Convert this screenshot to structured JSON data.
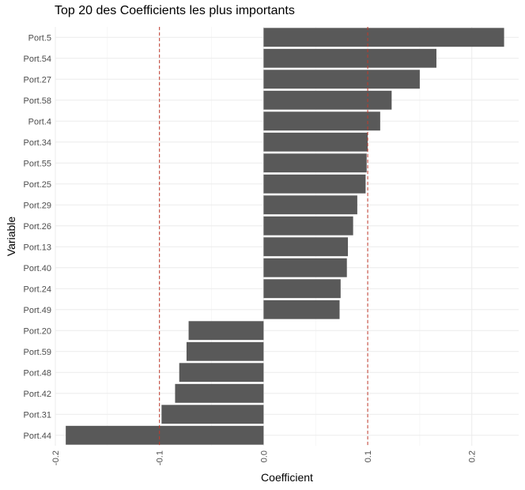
{
  "chart_data": {
    "type": "bar",
    "orientation": "horizontal",
    "title": "Top 20 des Coefficients les plus importants",
    "xlabel": "Coefficient",
    "ylabel": "Variable",
    "categories": [
      "Port.5",
      "Port.54",
      "Port.27",
      "Port.58",
      "Port.4",
      "Port.34",
      "Port.55",
      "Port.25",
      "Port.29",
      "Port.26",
      "Port.13",
      "Port.40",
      "Port.24",
      "Port.49",
      "Port.20",
      "Port.59",
      "Port.48",
      "Port.42",
      "Port.31",
      "Port.44"
    ],
    "values": [
      0.231,
      0.166,
      0.15,
      0.123,
      0.112,
      0.1,
      0.099,
      0.098,
      0.09,
      0.086,
      0.081,
      0.08,
      0.074,
      0.073,
      -0.072,
      -0.074,
      -0.081,
      -0.085,
      -0.098,
      -0.19
    ],
    "xlim": [
      -0.2,
      0.245
    ],
    "xticks": [
      -0.2,
      -0.1,
      0.0,
      0.1,
      0.2
    ],
    "xtick_labels": [
      "-0.2",
      "-0.1",
      "0.0",
      "0.1",
      "0.2"
    ],
    "reference_lines": [
      -0.1,
      0.1
    ],
    "bar_color": "#595959",
    "reference_line_color": "#c0392b",
    "grid": true,
    "legend": "none"
  }
}
